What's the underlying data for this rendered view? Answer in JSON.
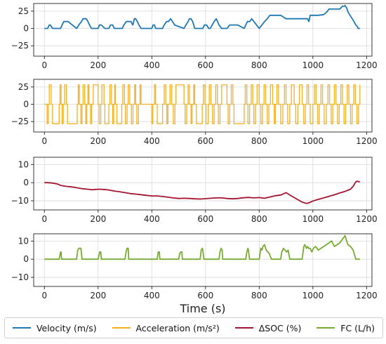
{
  "chart_data": [
    {
      "type": "line",
      "series": [
        {
          "name": "Velocity (m/s)",
          "color": "#1f77b4",
          "x": [
            0,
            5,
            12,
            18,
            22,
            30,
            55,
            60,
            66,
            72,
            80,
            88,
            120,
            128,
            138,
            144,
            150,
            156,
            162,
            168,
            175,
            190,
            200,
            205,
            212,
            225,
            240,
            246,
            254,
            260,
            265,
            290,
            296,
            305,
            315,
            322,
            329,
            335,
            340,
            346,
            352,
            360,
            400,
            405,
            410,
            414,
            420,
            440,
            446,
            455,
            462,
            470,
            477,
            485,
            520,
            527,
            535,
            540,
            546,
            552,
            560,
            590,
            596,
            604,
            612,
            618,
            625,
            632,
            640,
            645,
            650,
            660,
            680,
            690,
            700,
            720,
            744,
            750,
            756,
            765,
            772,
            780,
            790,
            800,
            810,
            820,
            830,
            840,
            850,
            860,
            880,
            900,
            920,
            960,
            980,
            985,
            990,
            1000,
            1020,
            1040,
            1050,
            1060,
            1080,
            1100,
            1110,
            1115,
            1120,
            1125,
            1132,
            1140,
            1150,
            1160,
            1165,
            1168,
            1172,
            1175
          ],
          "y": [
            0,
            0,
            0,
            5,
            5,
            0,
            0,
            0,
            5,
            10,
            10,
            10,
            0,
            5,
            10,
            14,
            14,
            14,
            10,
            5,
            0,
            0,
            0,
            5,
            5,
            0,
            0,
            5,
            5,
            0,
            0,
            0,
            5,
            10,
            10,
            10,
            5,
            14,
            14,
            10,
            5,
            0,
            0,
            5,
            5,
            0,
            0,
            0,
            5,
            10,
            10,
            14,
            10,
            5,
            0,
            5,
            10,
            14,
            14,
            10,
            0,
            0,
            5,
            5,
            0,
            0,
            5,
            10,
            14,
            10,
            5,
            0,
            0,
            5,
            5,
            5,
            0,
            5,
            10,
            10,
            14,
            10,
            5,
            0,
            5,
            10,
            14,
            19,
            19,
            19,
            19,
            14,
            14,
            14,
            14,
            10,
            19,
            19,
            19,
            20,
            23,
            28,
            28,
            28,
            32,
            32,
            33,
            30,
            23,
            18,
            12,
            5,
            3,
            0,
            0,
            0
          ]
        }
      ],
      "ylim": [
        -40,
        36
      ],
      "yticks": [
        25,
        0,
        -25
      ],
      "xlim": [
        -40,
        1220
      ],
      "xticks": [
        0,
        200,
        400,
        600,
        800,
        1000,
        1200
      ]
    },
    {
      "type": "line",
      "series": [
        {
          "name": "Acceleration (m/s²)",
          "color": "#f2b120",
          "switch_points": [
            10,
            14,
            18,
            25,
            30,
            55,
            58,
            62,
            66,
            70,
            75,
            82,
            86,
            122,
            126,
            130,
            136,
            140,
            144,
            150,
            154,
            158,
            162,
            166,
            172,
            176,
            182,
            200,
            204,
            210,
            214,
            222,
            225,
            240,
            244,
            250,
            254,
            258,
            262,
            264,
            270,
            288,
            292,
            298,
            302,
            308,
            312,
            318,
            324,
            330,
            336,
            340,
            344,
            350,
            356,
            360,
            400,
            404,
            410,
            414,
            420,
            440,
            446,
            452,
            456,
            460,
            468,
            474,
            480,
            486,
            490,
            520,
            524,
            530,
            535,
            540,
            546,
            550,
            556,
            560,
            566,
            588,
            592,
            598,
            602,
            610,
            614,
            620,
            626,
            632,
            638,
            644,
            648,
            654,
            660,
            680,
            684,
            690,
            696,
            702,
            706,
            744,
            748,
            754,
            758,
            764,
            770,
            776,
            780,
            786,
            792,
            800,
            806,
            812,
            818,
            824,
            830,
            836,
            842,
            850,
            856,
            860,
            866,
            872,
            880,
            888,
            894,
            900,
            906,
            914,
            920,
            930,
            936,
            944,
            950,
            960,
            966,
            972,
            978,
            984,
            990,
            1000,
            1006,
            1012,
            1018,
            1024,
            1030,
            1036,
            1042,
            1050,
            1056,
            1062,
            1068,
            1074,
            1080,
            1086,
            1092,
            1098,
            1104,
            1110,
            1116,
            1122,
            1128,
            1134,
            1140,
            1146,
            1152,
            1158,
            1164,
            1170,
            1175
          ],
          "levels": [
            28,
            0,
            -28
          ]
        }
      ],
      "ylim": [
        -40,
        36
      ],
      "yticks": [
        25,
        0,
        -25
      ],
      "xlim": [
        -40,
        1220
      ],
      "xticks": [
        0,
        200,
        400,
        600,
        800,
        1000,
        1200
      ]
    },
    {
      "type": "line",
      "series": [
        {
          "name": "ΔSOC (%)",
          "color": "#a2142f",
          "x": [
            0,
            10,
            30,
            50,
            60,
            80,
            100,
            120,
            140,
            160,
            180,
            200,
            220,
            240,
            260,
            280,
            300,
            320,
            340,
            360,
            380,
            400,
            420,
            440,
            460,
            480,
            500,
            520,
            540,
            560,
            580,
            600,
            620,
            640,
            660,
            680,
            700,
            720,
            740,
            760,
            780,
            800,
            820,
            840,
            860,
            880,
            900,
            920,
            940,
            960,
            975,
            985,
            1000,
            1020,
            1040,
            1060,
            1080,
            1100,
            1120,
            1140,
            1150,
            1160,
            1165,
            1170,
            1175
          ],
          "y": [
            0,
            0,
            -0.2,
            -0.8,
            -1.5,
            -2.0,
            -2.3,
            -2.8,
            -3.3,
            -3.6,
            -3.9,
            -3.6,
            -3.7,
            -4.0,
            -4.6,
            -5.0,
            -5.5,
            -6.0,
            -6.3,
            -6.6,
            -7.0,
            -7.3,
            -7.3,
            -7.6,
            -8.0,
            -8.4,
            -8.7,
            -8.6,
            -8.7,
            -8.9,
            -9.0,
            -8.8,
            -8.6,
            -8.4,
            -8.4,
            -8.7,
            -8.9,
            -8.7,
            -8.3,
            -8.1,
            -8.4,
            -8.2,
            -8.6,
            -7.9,
            -7.2,
            -6.8,
            -5.5,
            -7.3,
            -9.0,
            -10.7,
            -11.4,
            -11.1,
            -10.1,
            -9.2,
            -8.4,
            -7.5,
            -6.7,
            -5.7,
            -4.8,
            -3.6,
            -2.0,
            0.5,
            0.8,
            0.6,
            0.5
          ]
        }
      ],
      "ylim": [
        -15,
        14
      ],
      "yticks": [
        10,
        0,
        -10
      ],
      "xlim": [
        -40,
        1220
      ],
      "xticks": [
        0,
        200,
        400,
        600,
        800,
        1000,
        1200
      ]
    },
    {
      "type": "line",
      "series": [
        {
          "name": "FC (L/h)",
          "color": "#77ac30",
          "x": [
            0,
            55,
            60,
            62,
            64,
            66,
            70,
            120,
            124,
            128,
            132,
            136,
            140,
            144,
            148,
            150,
            200,
            206,
            210,
            212,
            216,
            218,
            222,
            300,
            304,
            308,
            312,
            314,
            318,
            340,
            420,
            424,
            428,
            430,
            436,
            438,
            442,
            500,
            504,
            508,
            512,
            514,
            518,
            530,
            580,
            584,
            588,
            590,
            594,
            596,
            600,
            650,
            654,
            658,
            662,
            664,
            668,
            670,
            674,
            700,
            750,
            754,
            758,
            760,
            764,
            768,
            772,
            800,
            806,
            810,
            814,
            820,
            826,
            832,
            838,
            840,
            846,
            850,
            880,
            884,
            890,
            896,
            902,
            908,
            914,
            960,
            966,
            970,
            976,
            980,
            984,
            990,
            996,
            1002,
            1010,
            1020,
            1030,
            1040,
            1050,
            1060,
            1070,
            1080,
            1090,
            1100,
            1110,
            1120,
            1130,
            1140,
            1150,
            1160,
            1170,
            1175
          ],
          "y": [
            0,
            0,
            4,
            4,
            0,
            0,
            0,
            0,
            5,
            6,
            6,
            6,
            0,
            0,
            0,
            0,
            0,
            4,
            4,
            0,
            0,
            0,
            0,
            0,
            4,
            6,
            6,
            0,
            0,
            0,
            0,
            4,
            4,
            0,
            0,
            0,
            0,
            0,
            3,
            4,
            4,
            0,
            0,
            0,
            0,
            5,
            6,
            5,
            0,
            0,
            0,
            0,
            4,
            6,
            5,
            0,
            0,
            0,
            0,
            0,
            0,
            4,
            6,
            5,
            0,
            0,
            0,
            0,
            6,
            5,
            7,
            8,
            5,
            4,
            3,
            2,
            0,
            0,
            0,
            4,
            6,
            5,
            4,
            5,
            0,
            0,
            7,
            8,
            6,
            7,
            6,
            6,
            4,
            6,
            7,
            5,
            6,
            7,
            8,
            9,
            10,
            7,
            8,
            9,
            11,
            13,
            8,
            7,
            5,
            0,
            0,
            0
          ]
        }
      ],
      "ylim": [
        -15,
        14
      ],
      "yticks": [
        10,
        0,
        -10
      ],
      "xlim": [
        -40,
        1220
      ],
      "xticks": [
        0,
        200,
        400,
        600,
        800,
        1000,
        1200
      ]
    }
  ],
  "xlabel": "Time (s)",
  "legend": [
    {
      "label": "Velocity (m/s)",
      "color": "#1f77b4"
    },
    {
      "label": "Acceleration (m/s²)",
      "color": "#f2b120"
    },
    {
      "label": "ΔSOC (%)",
      "color": "#a2142f"
    },
    {
      "label": "FC (L/h)",
      "color": "#77ac30"
    }
  ],
  "legend_position": "bottom",
  "grid": true
}
